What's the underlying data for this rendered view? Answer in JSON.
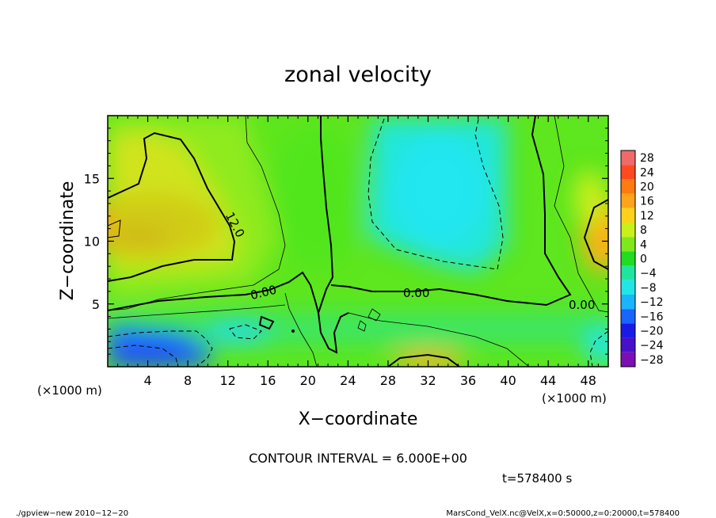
{
  "chart_data": {
    "type": "heatmap",
    "title": "zonal velocity",
    "xlabel": "X−coordinate",
    "ylabel": "Z−coordinate",
    "x_unit": "(×1000 m)",
    "x_unit_right": "(×1000 m)",
    "xlim": [
      0,
      50
    ],
    "ylim": [
      0,
      20
    ],
    "x_ticks": [
      4,
      8,
      12,
      16,
      20,
      24,
      28,
      32,
      36,
      40,
      44,
      48
    ],
    "x_tick_labels": [
      "4",
      "8",
      "12",
      "16",
      "20",
      "24",
      "28",
      "32",
      "36",
      "40",
      "44",
      "48"
    ],
    "y_ticks": [
      5,
      10,
      15
    ],
    "y_tick_labels": [
      "5",
      "10",
      "15"
    ],
    "colorbar": {
      "levels": [
        28,
        24,
        20,
        16,
        12,
        8,
        4,
        0,
        -4,
        -8,
        -12,
        -16,
        -20,
        -24,
        -28
      ],
      "labels": [
        "28",
        "24",
        "20",
        "16",
        "12",
        "8",
        "4",
        "0",
        "−4",
        "−8",
        "−12",
        "−16",
        "−20",
        "−24",
        "−28"
      ],
      "colors": [
        "#f06a6a",
        "#ff4a20",
        "#ff7a10",
        "#ffa418",
        "#ffd21a",
        "#c8f01a",
        "#7ee81a",
        "#22dc22",
        "#1ee6a0",
        "#22e6e6",
        "#1ab4ff",
        "#1a64ff",
        "#1a1ae6",
        "#4810c8",
        "#7a10b4"
      ]
    },
    "contour_labels": [
      "12.0",
      "0.00",
      "0.00",
      "0.00"
    ],
    "contour_interval": "CONTOUR INTERVAL = 6.000E+00",
    "time_label": "t=578400 s",
    "footer_left": "./gpview−new  2010−12−20",
    "footer_right": "MarsCond_VelX.nc@VelX,x=0:50000,z=0:20000,t=578400"
  }
}
